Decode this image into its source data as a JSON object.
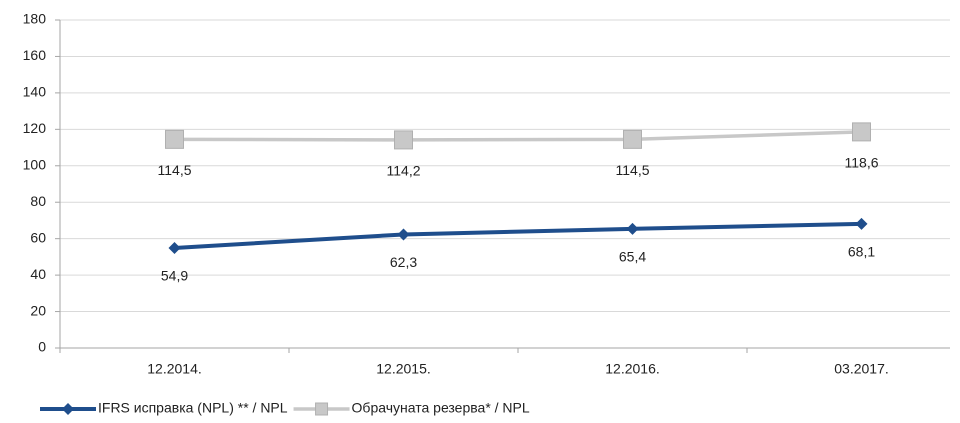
{
  "chart_data": {
    "type": "line",
    "categories": [
      "12.2014.",
      "12.2015.",
      "12.2016.",
      "03.2017."
    ],
    "series": [
      {
        "name": "IFRS исправка (NPL) ** / NPL",
        "color": "#1f4e8c",
        "marker": "diamond",
        "values": [
          54.9,
          62.3,
          65.4,
          68.1
        ],
        "value_labels": [
          "54,9",
          "62,3",
          "65,4",
          "68,1"
        ]
      },
      {
        "name": "Обрачуната резерва* / NPL",
        "color": "#c8c8c8",
        "marker": "square",
        "values": [
          114.5,
          114.2,
          114.5,
          118.6
        ],
        "value_labels": [
          "114,5",
          "114,2",
          "114,5",
          "118,6"
        ]
      }
    ],
    "ylim": [
      0,
      180
    ],
    "yticks": [
      0,
      20,
      40,
      60,
      80,
      100,
      120,
      140,
      160,
      180
    ],
    "grid": true,
    "legend": "bottom-left"
  }
}
